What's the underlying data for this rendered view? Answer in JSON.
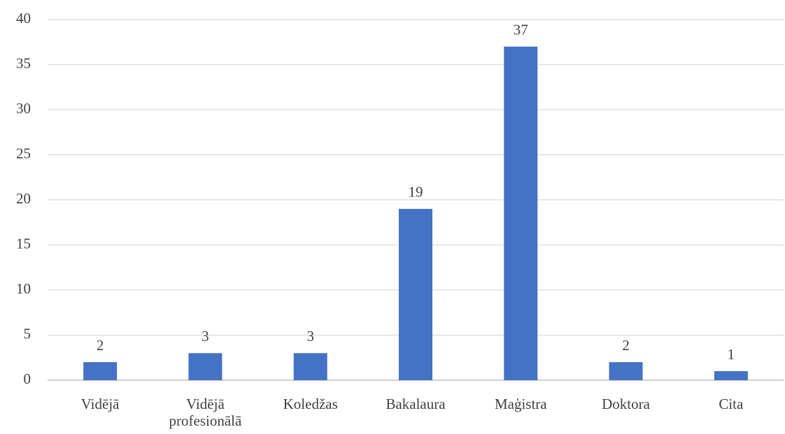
{
  "chart_data": {
    "type": "bar",
    "categories": [
      "Vidējā",
      "Vidējā profesionālā",
      "Koledžas",
      "Bakalaura",
      "Maģistra",
      "Doktora",
      "Cita"
    ],
    "values": [
      2,
      3,
      3,
      19,
      37,
      2,
      1
    ],
    "color": "#4472c4",
    "ylim": [
      0,
      40
    ],
    "yticks": [
      0,
      5,
      10,
      15,
      20,
      25,
      30,
      35,
      40
    ],
    "grid": true
  }
}
